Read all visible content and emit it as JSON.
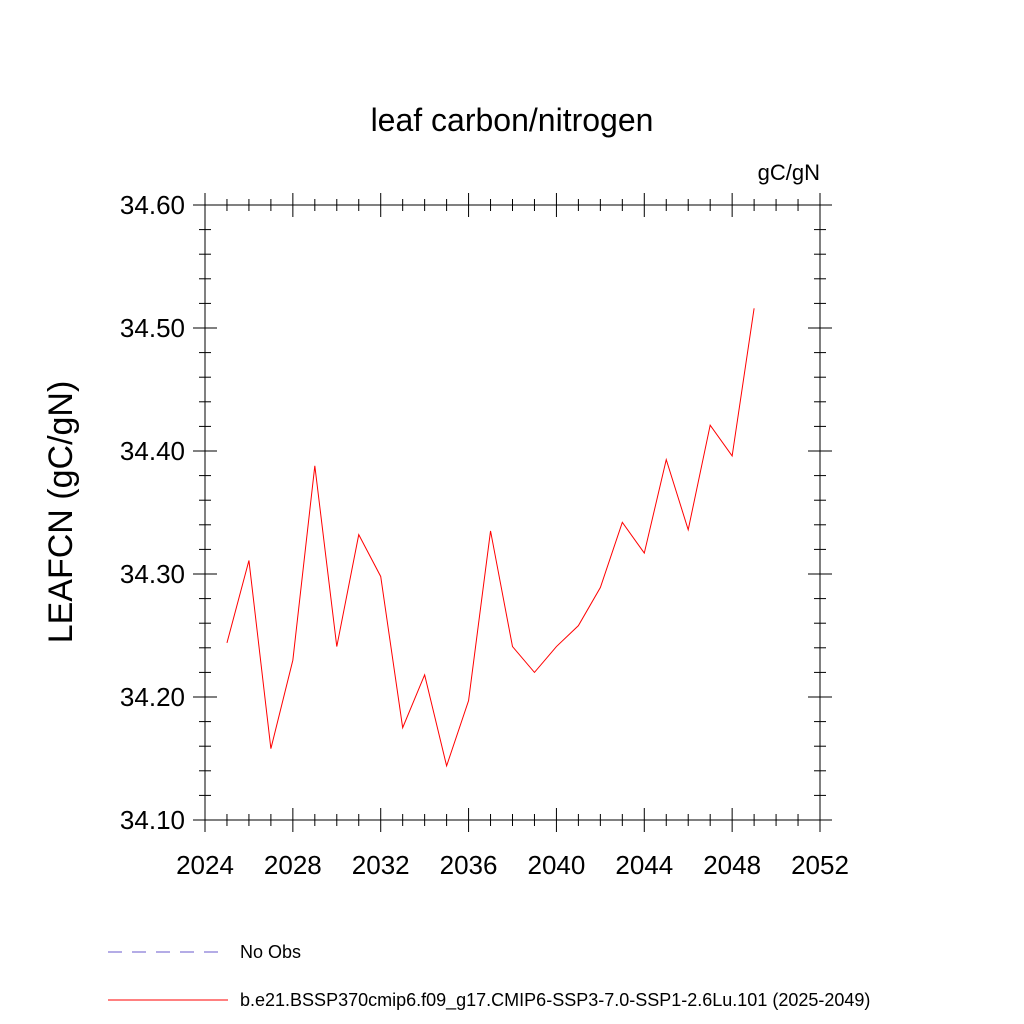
{
  "chart_data": {
    "type": "line",
    "title": "leaf carbon/nitrogen",
    "units": "gC/gN",
    "xlabel": "",
    "ylabel": "LEAFCN  (gC/gN)",
    "xlim": [
      2024,
      2052
    ],
    "ylim": [
      34.1,
      34.6
    ],
    "x_ticks": [
      "2024",
      "2028",
      "2032",
      "2036",
      "2040",
      "2044",
      "2048",
      "2052"
    ],
    "y_ticks": [
      "34.10",
      "34.20",
      "34.30",
      "34.40",
      "34.50",
      "34.60"
    ],
    "x_tick_values": [
      2024,
      2028,
      2032,
      2036,
      2040,
      2044,
      2048,
      2052
    ],
    "y_tick_values": [
      34.1,
      34.2,
      34.3,
      34.4,
      34.5,
      34.6
    ],
    "series": [
      {
        "name": "b.e21.BSSP370cmip6.f09_g17.CMIP6-SSP3-7.0-SSP1-2.6Lu.101 (2025-2049)",
        "color": "#ff0000",
        "x": [
          2025,
          2026,
          2027,
          2028,
          2029,
          2030,
          2031,
          2032,
          2033,
          2034,
          2035,
          2036,
          2037,
          2038,
          2039,
          2040,
          2041,
          2042,
          2043,
          2044,
          2045,
          2046,
          2047,
          2048,
          2049
        ],
        "values": [
          34.244,
          34.311,
          34.158,
          34.23,
          34.388,
          34.241,
          34.332,
          34.298,
          34.175,
          34.218,
          34.144,
          34.197,
          34.335,
          34.241,
          34.22,
          34.241,
          34.258,
          34.289,
          34.342,
          34.317,
          34.393,
          34.336,
          34.421,
          34.396,
          34.516
        ]
      }
    ],
    "legend": [
      {
        "label": "No Obs",
        "color": "#6a5acd",
        "style": "dashed"
      },
      {
        "label": "b.e21.BSSP370cmip6.f09_g17.CMIP6-SSP3-7.0-SSP1-2.6Lu.101 (2025-2049)",
        "color": "#ff0000",
        "style": "solid"
      }
    ]
  }
}
